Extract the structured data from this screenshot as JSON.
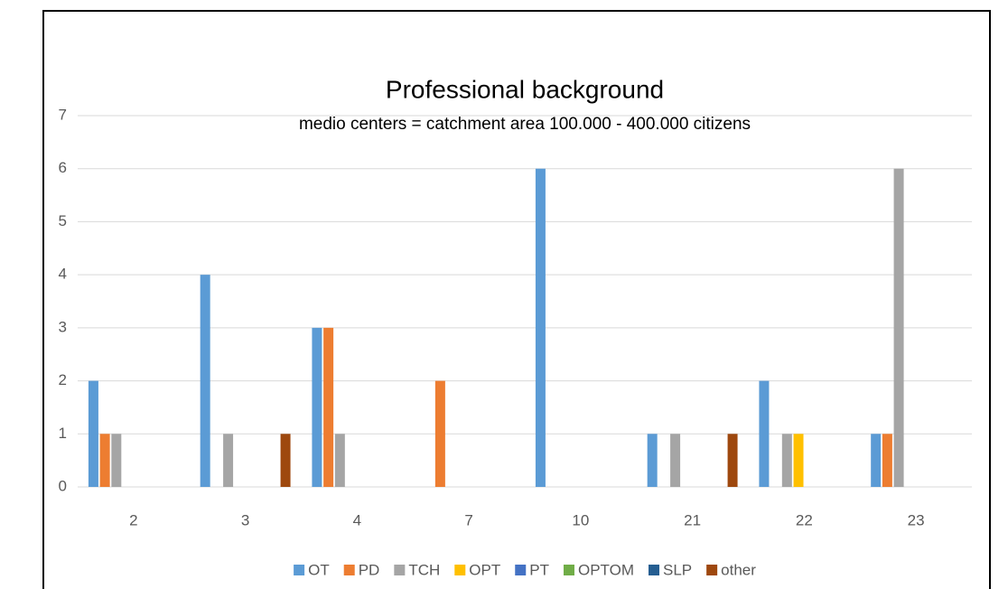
{
  "chart_data": {
    "type": "bar",
    "title": "Professional background",
    "subtitle": "medio centers = catchment area 100.000 - 400.000 citizens",
    "categories": [
      "2",
      "3",
      "4",
      "7",
      "10",
      "21",
      "22",
      "23"
    ],
    "series": [
      {
        "name": "OT",
        "color": "#5b9bd5",
        "values": [
          2,
          4,
          3,
          0,
          6,
          1,
          2,
          1
        ]
      },
      {
        "name": "PD",
        "color": "#ed7d31",
        "values": [
          1,
          0,
          3,
          2,
          0,
          0,
          0,
          1
        ]
      },
      {
        "name": "TCH",
        "color": "#a5a5a5",
        "values": [
          1,
          1,
          1,
          0,
          0,
          1,
          1,
          6
        ]
      },
      {
        "name": "OPT",
        "color": "#ffc000",
        "values": [
          0,
          0,
          0,
          0,
          0,
          0,
          1,
          0
        ]
      },
      {
        "name": "PT",
        "color": "#4472c4",
        "values": [
          0,
          0,
          0,
          0,
          0,
          0,
          0,
          0
        ]
      },
      {
        "name": "OPTOM",
        "color": "#70ad47",
        "values": [
          0,
          0,
          0,
          0,
          0,
          0,
          0,
          0
        ]
      },
      {
        "name": "SLP",
        "color": "#255e91",
        "values": [
          0,
          0,
          0,
          0,
          0,
          0,
          0,
          0
        ]
      },
      {
        "name": "other",
        "color": "#9e480e",
        "values": [
          0,
          1,
          0,
          0,
          0,
          1,
          0,
          0
        ]
      }
    ],
    "ylim": [
      0,
      7
    ],
    "yticks": [
      0,
      1,
      2,
      3,
      4,
      5,
      6,
      7
    ],
    "grid": true,
    "legend": "bottom"
  }
}
